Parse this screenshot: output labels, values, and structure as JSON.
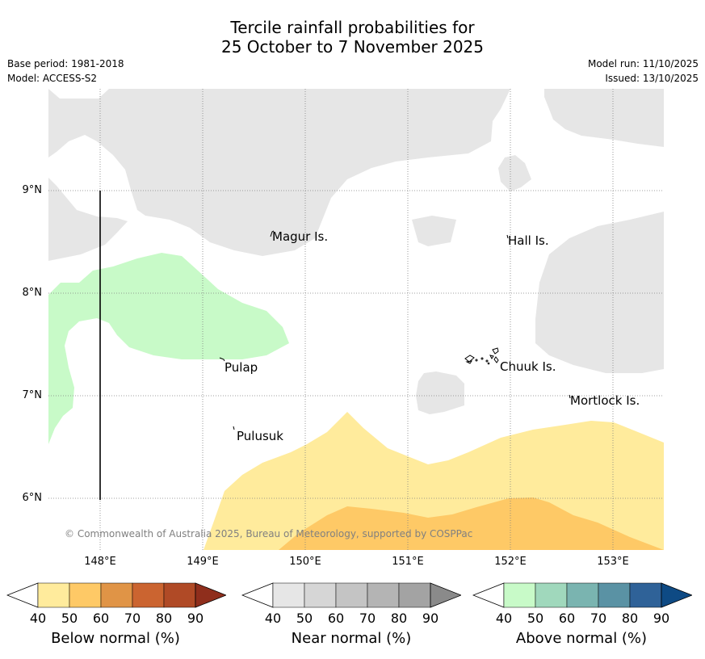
{
  "title": {
    "line1": "Tercile rainfall probabilities for",
    "line2": "25 October to 7 November 2025"
  },
  "meta": {
    "base_period": "Base period: 1981-2018",
    "model": "Model: ACCESS-S2",
    "model_run": "Model run: 11/10/2025",
    "issued": "Issued: 13/10/2025"
  },
  "map": {
    "lat_labels": [
      "9°N",
      "8°N",
      "7°N",
      "6°N"
    ],
    "lon_labels": [
      "148°E",
      "149°E",
      "150°E",
      "151°E",
      "152°E",
      "153°E"
    ],
    "places": [
      "Magur Is.",
      "Hall Is.",
      "Pulap",
      "Chuuk Is.",
      "Mortlock Is.",
      "Pulusuk"
    ],
    "copyright": "© Commonwealth of Australia 2025, Bureau of Meteorology, supported by COSPPac",
    "colors": {
      "near_normal": "#e6e6e6",
      "above_40": "#c8fac8",
      "below_40": "#ffeb9c",
      "below_50": "#fec966"
    }
  },
  "legend": [
    {
      "title": "Below normal (%)",
      "ticks": [
        "40",
        "50",
        "60",
        "70",
        "80",
        "90"
      ],
      "colors": [
        "#ffffff",
        "#ffeb9c",
        "#fec966",
        "#e09446",
        "#cb6430",
        "#b04a26",
        "#8f2e1c"
      ]
    },
    {
      "title": "Near normal (%)",
      "ticks": [
        "40",
        "50",
        "60",
        "70",
        "80",
        "90"
      ],
      "colors": [
        "#ffffff",
        "#e6e6e6",
        "#d6d6d6",
        "#c4c4c4",
        "#b4b4b4",
        "#a3a3a3",
        "#8a8a8a"
      ]
    },
    {
      "title": "Above normal (%)",
      "ticks": [
        "40",
        "50",
        "60",
        "70",
        "80",
        "90"
      ],
      "colors": [
        "#ffffff",
        "#c8fac8",
        "#a0d8bc",
        "#7ab4b0",
        "#5a92a4",
        "#2f6298",
        "#0e4a84"
      ]
    }
  ]
}
